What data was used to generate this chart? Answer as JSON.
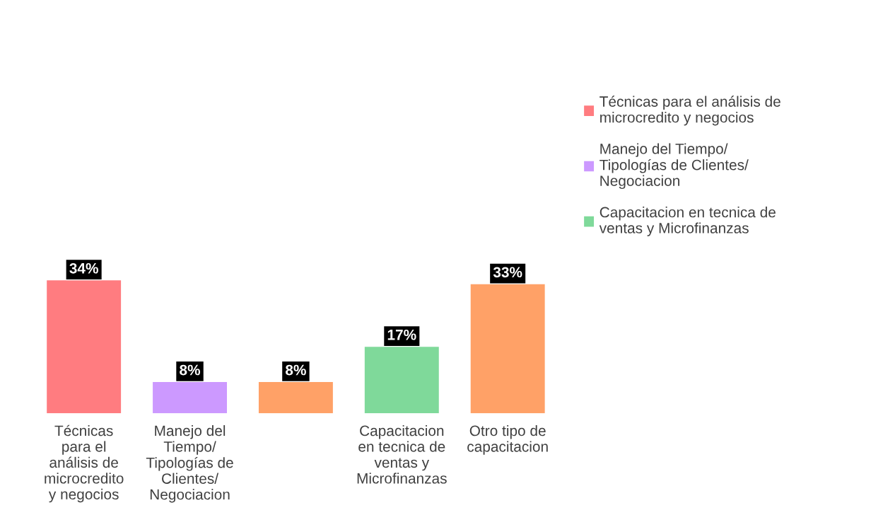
{
  "chart_data": {
    "type": "bar",
    "categories": [
      "Técnicas\npara el\nanálisis de\nmicrocredito\ny negocios",
      "Manejo del\nTiempo/\nTipologías de\nClientes/\nNegociacion",
      null,
      "Capacitacion\nen tecnica de\nventas y\nMicrofinanzas",
      "Otro tipo de\ncapacitacion"
    ],
    "series": [
      {
        "name": "Técnicas para el análisis de\nmicrocredito y negocios",
        "color": "#ff7c80",
        "values": [
          34,
          null,
          null,
          null,
          null
        ],
        "value_labels": [
          "34%",
          null,
          null,
          null,
          null
        ]
      },
      {
        "name": "Manejo del Tiempo/\nTipologías de Clientes/\nNegociacion",
        "color": "#cc99ff",
        "values": [
          null,
          8,
          null,
          null,
          null
        ],
        "value_labels": [
          null,
          "8%",
          null,
          null,
          null
        ]
      },
      {
        "color": "#ffa167",
        "values": [
          null,
          null,
          8,
          null,
          null
        ],
        "value_labels": [
          null,
          null,
          "8%",
          null,
          null
        ]
      },
      {
        "name": "Capacitacion en tecnica de\nventas y Microfinanzas",
        "color": "#7fd99a",
        "values": [
          null,
          null,
          null,
          17,
          null
        ],
        "value_labels": [
          null,
          null,
          null,
          "17%",
          null
        ]
      },
      {
        "color": "#ffa167",
        "values": [
          null,
          null,
          null,
          null,
          33
        ],
        "value_labels": [
          null,
          null,
          null,
          null,
          "33%"
        ]
      }
    ],
    "legend": "right",
    "grid": false
  }
}
